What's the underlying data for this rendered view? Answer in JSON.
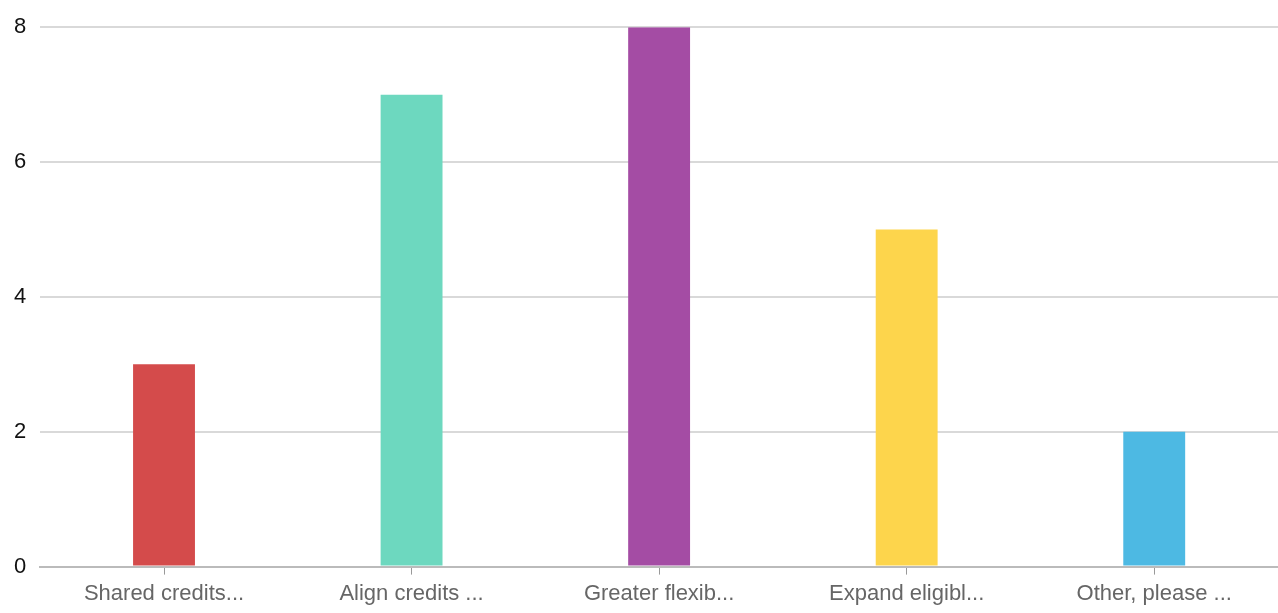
{
  "chart_data": {
    "type": "bar",
    "categories": [
      "Shared credits...",
      "Align credits ...",
      "Greater flexib...",
      "Expand eligibl...",
      "Other, please ..."
    ],
    "values": [
      3,
      7,
      8,
      5,
      2
    ],
    "colors": [
      "#d44b4b",
      "#6dd8bf",
      "#a44ca4",
      "#fdd54c",
      "#4db9e3"
    ],
    "ylim": [
      0,
      8
    ],
    "yticks": [
      0,
      2,
      4,
      6,
      8
    ],
    "grid": "y"
  }
}
